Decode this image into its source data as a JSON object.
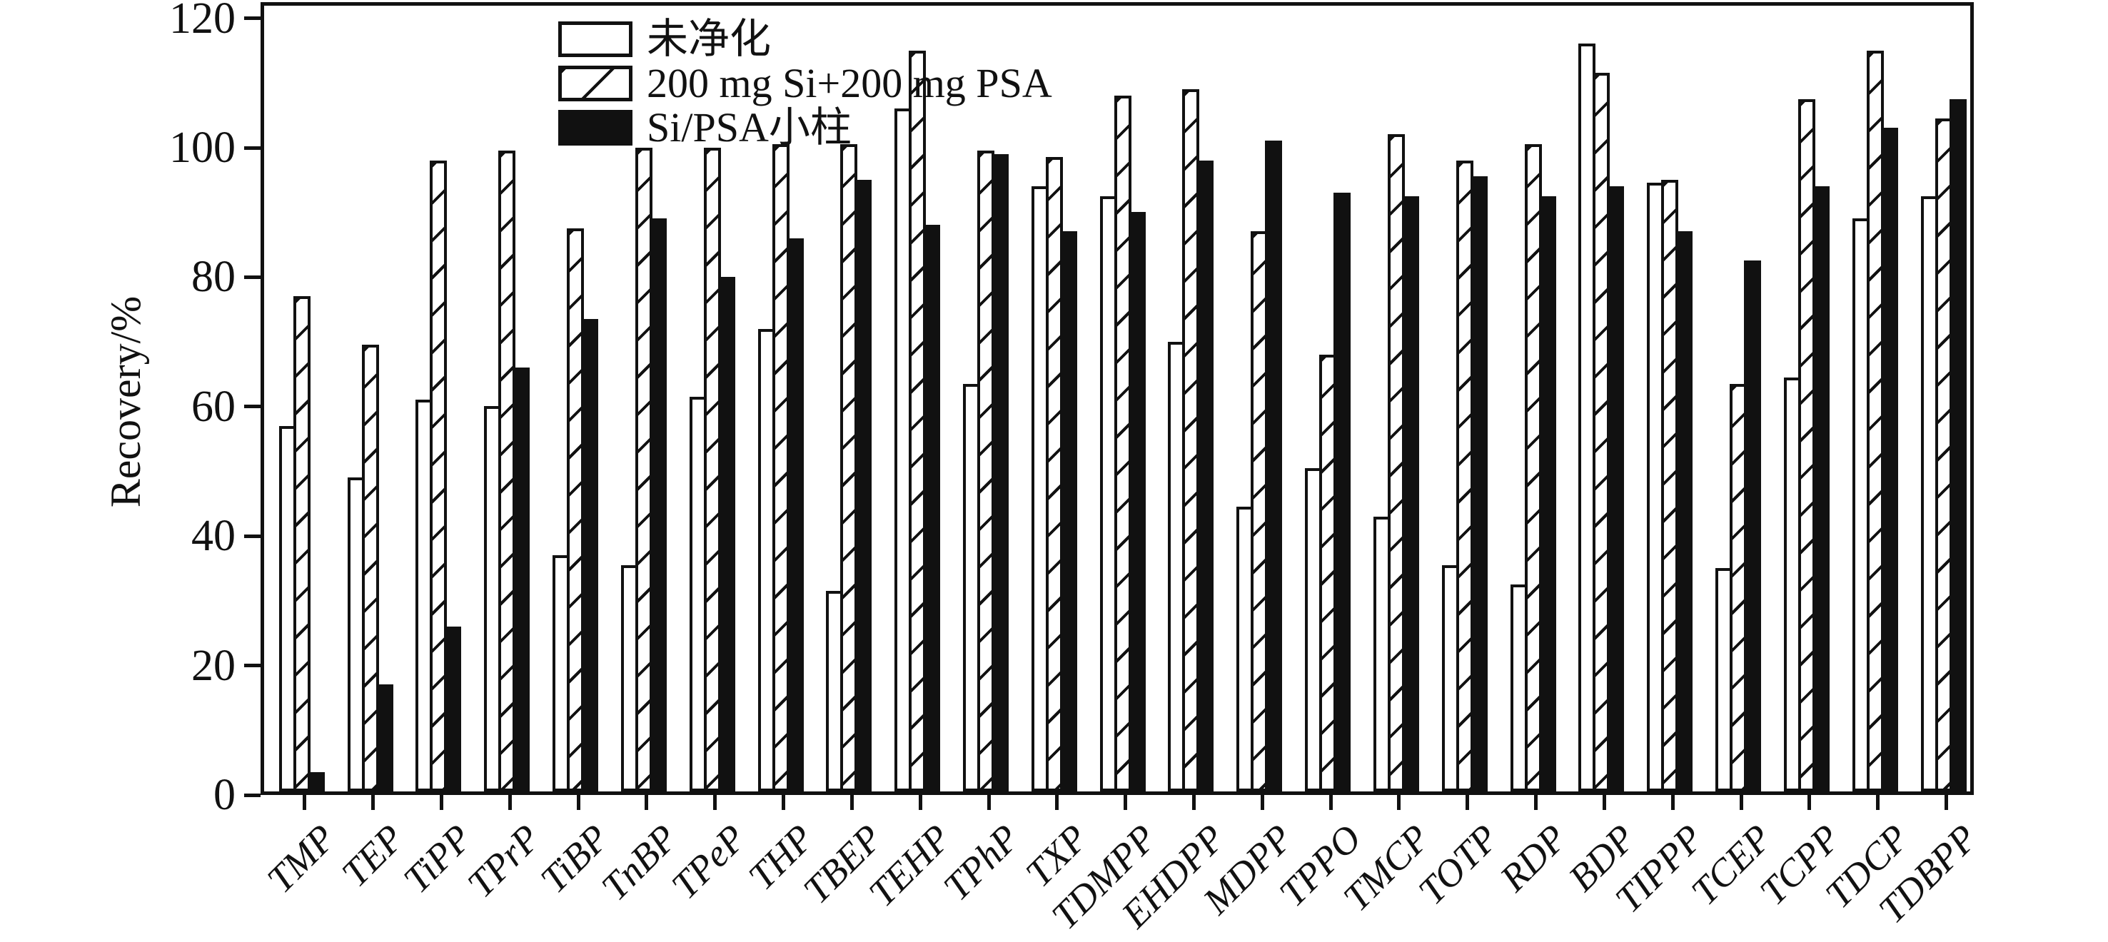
{
  "chart_data": {
    "type": "bar",
    "title": "",
    "xlabel": "",
    "ylabel": "Recovery/%",
    "ylim": [
      0,
      122.4
    ],
    "yticks": [
      0,
      20,
      40,
      60,
      80,
      100,
      120
    ],
    "grid": false,
    "legend_position": "top-left-inside",
    "bar_outline_color": "#111111",
    "background_color": "#ffffff",
    "categories": [
      "TMP",
      "TEP",
      "TiPP",
      "TPrP",
      "TiBP",
      "TnBP",
      "TPeP",
      "THP",
      "TBEP",
      "TEHP",
      "TPhP",
      "TXP",
      "TDMPP",
      "EHDPP",
      "MDPP",
      "TPPO",
      "TMCP",
      "TOTP",
      "RDP",
      "BDP",
      "TIPPP",
      "TCEP",
      "TCPP",
      "TDCP",
      "TDBPP"
    ],
    "series": [
      {
        "name": "未净化",
        "style": "white",
        "values": [
          56.5,
          48.5,
          60.5,
          59.5,
          36.5,
          35,
          61,
          71.5,
          31,
          105.5,
          63,
          93.5,
          92,
          69.5,
          44,
          50,
          42.5,
          35,
          32,
          115.5,
          94,
          34.5,
          64,
          88.5,
          92
        ]
      },
      {
        "name": "200 mg Si+200 mg PSA",
        "style": "hatched",
        "values": [
          76.5,
          69,
          97.5,
          99,
          87,
          99.5,
          99.5,
          100,
          100,
          114.5,
          99,
          98,
          107.5,
          108.5,
          86.5,
          67.5,
          101.5,
          97.5,
          100,
          111,
          94.5,
          63,
          107,
          114.5,
          104
        ]
      },
      {
        "name": "Si/PSA小柱",
        "style": "black",
        "values": [
          3,
          16.5,
          25.5,
          65.5,
          73,
          88.5,
          79.5,
          85.5,
          94.5,
          87.5,
          98.5,
          86.5,
          89.5,
          97.5,
          100.5,
          92.5,
          92,
          95,
          92,
          93.5,
          86.5,
          82,
          93.5,
          102.5,
          107
        ]
      }
    ]
  }
}
